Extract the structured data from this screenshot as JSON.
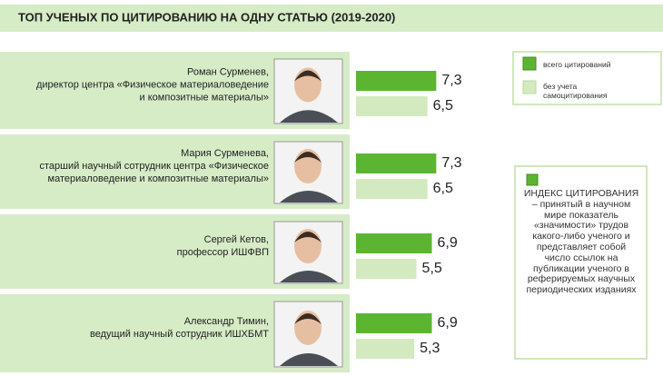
{
  "chart_data": {
    "type": "bar",
    "orientation": "horizontal",
    "title": "ТОП УЧЕНЫХ ПО ЦИТИРОВАНИЮ НА ОДНУ СТАТЬЮ (2019-2020)",
    "categories": [
      "Роман Сурменев,",
      "Мария Сурменева,",
      "Сергей Кетов,",
      "Александр Тимин,"
    ],
    "roles": [
      [
        "директор центра «Физическое материаловедение",
        "и композитные материалы»"
      ],
      [
        "старший научный сотрудник центра «Физическое",
        "материаловедение и композитные материалы»"
      ],
      [
        "профессор ИШФВП"
      ],
      [
        "ведущий научный сотрудник ИШХБМТ"
      ]
    ],
    "series": [
      {
        "name": "всего цитирований",
        "color": "#5cb531",
        "values": [
          7.3,
          7.3,
          6.9,
          6.9
        ],
        "value_labels": [
          "7,3",
          "7,3",
          "6,9",
          "6,9"
        ]
      },
      {
        "name": "без учета самоцитирования",
        "color": "#d3eac0",
        "values": [
          6.5,
          6.5,
          5.5,
          5.3
        ],
        "value_labels": [
          "6,5",
          "6,5",
          "5,5",
          "5,3"
        ]
      }
    ],
    "note": "ИНДЕКС ЦИТИРОВАНИЯ – принятый в научном мире показатель «значимости» трудов какого-либо ученого и представляет собой число ссылок на публикации ученого в реферируемых научных периодических изданиях"
  }
}
